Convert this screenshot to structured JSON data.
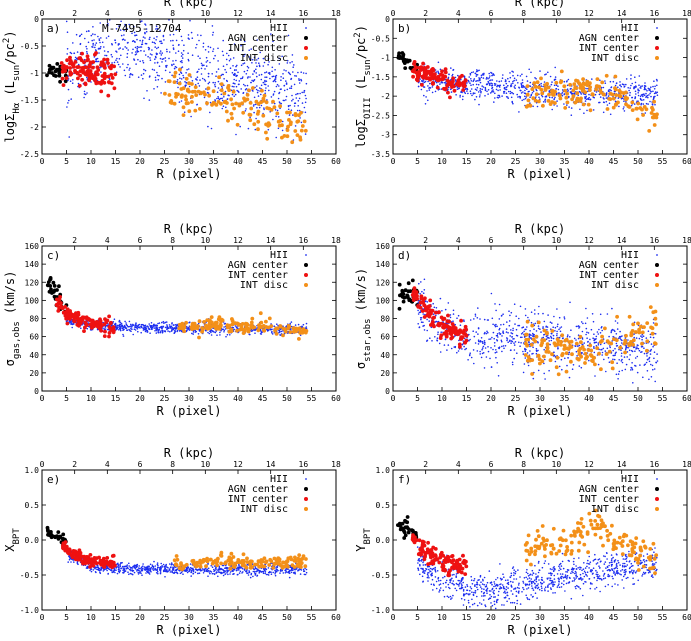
{
  "figure": {
    "title": ""
  },
  "colors": {
    "hii": "#1b2cf0",
    "agn": "#000000",
    "int_center": "#ee1111",
    "int_disc": "#f39019"
  },
  "chart_data": [
    {
      "type": "scatter",
      "panel": "a)",
      "annotation": "M-7495-12704",
      "xlabel": "R  (pixel)",
      "ylabel": "logΣ_Hα (L_sun/pc^2)",
      "x2label": "R  (kpc)",
      "xlim": [
        0,
        60
      ],
      "ylim": [
        -2.5,
        0.0
      ],
      "xticks": [
        "0",
        "5",
        "10",
        "15",
        "20",
        "25",
        "30",
        "35",
        "40",
        "45",
        "50",
        "55",
        "60"
      ],
      "yticks": [
        "0",
        "-0.5",
        "-1",
        "-1.5",
        "-2",
        "-2.5"
      ],
      "x2lim": [
        0,
        18
      ],
      "x2ticks": [
        "0",
        "2",
        "4",
        "6",
        "8",
        "10",
        "12",
        "14",
        "16",
        "18"
      ],
      "legend": [
        "HII",
        "AGN center",
        "INT center",
        "INT disc"
      ],
      "series": [
        {
          "name": "HII",
          "x_range": [
            5,
            54
          ],
          "trend": [
            [
              5,
              -1.0
            ],
            [
              10,
              -0.7
            ],
            [
              15,
              -0.5
            ],
            [
              20,
              -0.6
            ],
            [
              25,
              -0.75
            ],
            [
              30,
              -0.9
            ],
            [
              40,
              -1.15
            ],
            [
              50,
              -1.3
            ],
            [
              53,
              -1.4
            ]
          ],
          "spread": 0.35,
          "n": 900
        },
        {
          "name": "AGN center",
          "x_range": [
            1,
            5
          ],
          "trend": [
            [
              1,
              -0.95
            ],
            [
              3,
              -1.0
            ],
            [
              5,
              -0.95
            ]
          ],
          "spread": 0.1,
          "n": 30
        },
        {
          "name": "INT center",
          "x_range": [
            4,
            15
          ],
          "trend": [
            [
              4,
              -0.95
            ],
            [
              8,
              -0.95
            ],
            [
              12,
              -1.0
            ],
            [
              15,
              -1.05
            ]
          ],
          "spread": 0.15,
          "n": 120
        },
        {
          "name": "INT disc",
          "x_range": [
            25,
            54
          ],
          "trend": [
            [
              25,
              -1.3
            ],
            [
              30,
              -1.4
            ],
            [
              35,
              -1.5
            ],
            [
              40,
              -1.6
            ],
            [
              42,
              -1.7
            ],
            [
              54,
              -2.05
            ]
          ],
          "spread": 0.2,
          "n": 150
        }
      ]
    },
    {
      "type": "scatter",
      "panel": "b)",
      "annotation": "",
      "xlabel": "R  (pixel)",
      "ylabel": "logΣ_OIII (L_sun/pc^2)",
      "x2label": "R  (kpc)",
      "xlim": [
        0,
        60
      ],
      "ylim": [
        -3.5,
        0.0
      ],
      "xticks": [
        "0",
        "5",
        "10",
        "15",
        "20",
        "25",
        "30",
        "35",
        "40",
        "45",
        "50",
        "55",
        "60"
      ],
      "yticks": [
        "0",
        "-0.5",
        "-1",
        "-1.5",
        "-2",
        "-2.5",
        "-3",
        "-3.5"
      ],
      "x2lim": [
        0,
        18
      ],
      "x2ticks": [
        "0",
        "2",
        "4",
        "6",
        "8",
        "10",
        "12",
        "14",
        "16",
        "18"
      ],
      "legend": [
        "HII",
        "AGN center",
        "INT center",
        "INT disc"
      ],
      "series": [
        {
          "name": "HII",
          "x_range": [
            5,
            54
          ],
          "trend": [
            [
              5,
              -1.5
            ],
            [
              15,
              -1.7
            ],
            [
              25,
              -1.8
            ],
            [
              35,
              -1.9
            ],
            [
              45,
              -1.95
            ],
            [
              53,
              -2.0
            ]
          ],
          "spread": 0.2,
          "n": 900
        },
        {
          "name": "AGN center",
          "x_range": [
            1,
            5
          ],
          "trend": [
            [
              1,
              -0.95
            ],
            [
              3,
              -1.1
            ],
            [
              5,
              -1.3
            ]
          ],
          "spread": 0.1,
          "n": 30
        },
        {
          "name": "INT center",
          "x_range": [
            4,
            15
          ],
          "trend": [
            [
              4,
              -1.3
            ],
            [
              8,
              -1.5
            ],
            [
              12,
              -1.65
            ],
            [
              15,
              -1.7
            ]
          ],
          "spread": 0.12,
          "n": 120
        },
        {
          "name": "INT disc",
          "x_range": [
            27,
            54
          ],
          "trend": [
            [
              27,
              -1.9
            ],
            [
              33,
              -1.85
            ],
            [
              38,
              -1.8
            ],
            [
              42,
              -1.9
            ],
            [
              54,
              -2.45
            ]
          ],
          "spread": 0.2,
          "n": 150
        }
      ]
    },
    {
      "type": "scatter",
      "panel": "c)",
      "annotation": "",
      "xlabel": "R  (pixel)",
      "ylabel": "σ_gas,obs (km/s)",
      "x2label": "R  (kpc)",
      "xlim": [
        0,
        60
      ],
      "ylim": [
        0,
        160
      ],
      "xticks": [
        "0",
        "5",
        "10",
        "15",
        "20",
        "25",
        "30",
        "35",
        "40",
        "45",
        "50",
        "55",
        "60"
      ],
      "yticks": [
        "0",
        "20",
        "40",
        "60",
        "80",
        "100",
        "120",
        "140",
        "160"
      ],
      "x2lim": [
        0,
        18
      ],
      "x2ticks": [
        "0",
        "2",
        "4",
        "6",
        "8",
        "10",
        "12",
        "14",
        "16",
        "18"
      ],
      "legend": [
        "HII",
        "AGN center",
        "INT center",
        "INT disc"
      ],
      "series": [
        {
          "name": "HII",
          "x_range": [
            5,
            54
          ],
          "trend": [
            [
              5,
              78
            ],
            [
              10,
              72
            ],
            [
              20,
              70
            ],
            [
              30,
              69
            ],
            [
              40,
              69
            ],
            [
              53,
              68
            ]
          ],
          "spread": 3,
          "n": 900
        },
        {
          "name": "AGN center",
          "x_range": [
            1,
            5
          ],
          "trend": [
            [
              1,
              122
            ],
            [
              3,
              108
            ],
            [
              5,
              90
            ]
          ],
          "spread": 8,
          "n": 30
        },
        {
          "name": "INT center",
          "x_range": [
            3,
            15
          ],
          "trend": [
            [
              3,
              100
            ],
            [
              5,
              85
            ],
            [
              8,
              76
            ],
            [
              12,
              73
            ],
            [
              15,
              72
            ]
          ],
          "spread": 4,
          "n": 120
        },
        {
          "name": "INT disc",
          "x_range": [
            28,
            54
          ],
          "trend": [
            [
              28,
              71
            ],
            [
              35,
              72
            ],
            [
              42,
              72
            ],
            [
              54,
              66
            ]
          ],
          "spread": 4,
          "n": 150
        }
      ]
    },
    {
      "type": "scatter",
      "panel": "d)",
      "annotation": "",
      "xlabel": "R  (pixel)",
      "ylabel": "σ_star,obs (km/s)",
      "x2label": "R  (kpc)",
      "xlim": [
        0,
        60
      ],
      "ylim": [
        0,
        160
      ],
      "xticks": [
        "0",
        "5",
        "10",
        "15",
        "20",
        "25",
        "30",
        "35",
        "40",
        "45",
        "50",
        "55",
        "60"
      ],
      "yticks": [
        "0",
        "20",
        "40",
        "60",
        "80",
        "100",
        "120",
        "140",
        "160"
      ],
      "x2lim": [
        0,
        18
      ],
      "x2ticks": [
        "0",
        "2",
        "4",
        "6",
        "8",
        "10",
        "12",
        "14",
        "16",
        "18"
      ],
      "legend": [
        "HII",
        "AGN center",
        "INT center",
        "INT disc"
      ],
      "series": [
        {
          "name": "HII",
          "x_range": [
            5,
            54
          ],
          "trend": [
            [
              5,
              95
            ],
            [
              10,
              70
            ],
            [
              15,
              62
            ],
            [
              20,
              58
            ],
            [
              30,
              55
            ],
            [
              40,
              52
            ],
            [
              53,
              45
            ]
          ],
          "spread": 15,
          "n": 900
        },
        {
          "name": "AGN center",
          "x_range": [
            1,
            5
          ],
          "trend": [
            [
              1,
              105
            ],
            [
              3,
              108
            ],
            [
              5,
              105
            ]
          ],
          "spread": 6,
          "n": 30
        },
        {
          "name": "INT center",
          "x_range": [
            4,
            15
          ],
          "trend": [
            [
              4,
              108
            ],
            [
              7,
              90
            ],
            [
              10,
              72
            ],
            [
              13,
              62
            ],
            [
              15,
              60
            ]
          ],
          "spread": 6,
          "n": 120
        },
        {
          "name": "INT disc",
          "x_range": [
            27,
            54
          ],
          "trend": [
            [
              27,
              50
            ],
            [
              33,
              48
            ],
            [
              38,
              45
            ],
            [
              42,
              42
            ],
            [
              54,
              75
            ]
          ],
          "spread": 12,
          "n": 150
        }
      ]
    },
    {
      "type": "scatter",
      "panel": "e)",
      "annotation": "",
      "xlabel": "R  (pixel)",
      "ylabel": "X_BPT",
      "x2label": "R  (kpc)",
      "xlim": [
        0,
        60
      ],
      "ylim": [
        -1.0,
        1.0
      ],
      "xticks": [
        "0",
        "5",
        "10",
        "15",
        "20",
        "25",
        "30",
        "35",
        "40",
        "45",
        "50",
        "55",
        "60"
      ],
      "yticks": [
        "1.0",
        "0.5",
        "0.0",
        "-0.5",
        "-1.0"
      ],
      "x2lim": [
        0,
        18
      ],
      "x2ticks": [
        "0",
        "2",
        "4",
        "6",
        "8",
        "10",
        "12",
        "14",
        "16",
        "18"
      ],
      "legend": [
        "HII",
        "AGN center",
        "INT center",
        "INT disc"
      ],
      "series": [
        {
          "name": "HII",
          "x_range": [
            5,
            54
          ],
          "trend": [
            [
              5,
              -0.2
            ],
            [
              10,
              -0.38
            ],
            [
              20,
              -0.42
            ],
            [
              30,
              -0.42
            ],
            [
              40,
              -0.42
            ],
            [
              53,
              -0.42
            ]
          ],
          "spread": 0.04,
          "n": 900
        },
        {
          "name": "AGN center",
          "x_range": [
            1,
            5
          ],
          "trend": [
            [
              1,
              0.12
            ],
            [
              3,
              0.05
            ],
            [
              5,
              -0.05
            ]
          ],
          "spread": 0.04,
          "n": 30
        },
        {
          "name": "INT center",
          "x_range": [
            4,
            15
          ],
          "trend": [
            [
              4,
              -0.05
            ],
            [
              6,
              -0.18
            ],
            [
              9,
              -0.28
            ],
            [
              12,
              -0.32
            ],
            [
              15,
              -0.33
            ]
          ],
          "spread": 0.04,
          "n": 120
        },
        {
          "name": "INT disc",
          "x_range": [
            27,
            54
          ],
          "trend": [
            [
              27,
              -0.35
            ],
            [
              33,
              -0.32
            ],
            [
              38,
              -0.3
            ],
            [
              42,
              -0.32
            ],
            [
              54,
              -0.3
            ]
          ],
          "spread": 0.05,
          "n": 150
        }
      ]
    },
    {
      "type": "scatter",
      "panel": "f)",
      "annotation": "",
      "xlabel": "R  (pixel)",
      "ylabel": "Y_BPT",
      "x2label": "R  (kpc)",
      "xlim": [
        0,
        60
      ],
      "ylim": [
        -1.0,
        1.0
      ],
      "xticks": [
        "0",
        "5",
        "10",
        "15",
        "20",
        "25",
        "30",
        "35",
        "40",
        "45",
        "50",
        "55",
        "60"
      ],
      "yticks": [
        "1.0",
        "0.5",
        "0.0",
        "-0.5",
        "-1.0"
      ],
      "x2lim": [
        0,
        18
      ],
      "x2ticks": [
        "0",
        "2",
        "4",
        "6",
        "8",
        "10",
        "12",
        "14",
        "16",
        "18"
      ],
      "legend": [
        "HII",
        "AGN center",
        "INT center",
        "INT disc"
      ],
      "series": [
        {
          "name": "HII",
          "x_range": [
            5,
            54
          ],
          "trend": [
            [
              5,
              -0.3
            ],
            [
              10,
              -0.6
            ],
            [
              20,
              -0.75
            ],
            [
              30,
              -0.6
            ],
            [
              40,
              -0.45
            ],
            [
              53,
              -0.35
            ]
          ],
          "spread": 0.12,
          "n": 900
        },
        {
          "name": "AGN center",
          "x_range": [
            1,
            5
          ],
          "trend": [
            [
              1,
              0.25
            ],
            [
              3,
              0.18
            ],
            [
              5,
              0.05
            ]
          ],
          "spread": 0.06,
          "n": 30
        },
        {
          "name": "INT center",
          "x_range": [
            4,
            15
          ],
          "trend": [
            [
              4,
              0.0
            ],
            [
              7,
              -0.2
            ],
            [
              10,
              -0.3
            ],
            [
              15,
              -0.35
            ]
          ],
          "spread": 0.08,
          "n": 120
        },
        {
          "name": "INT disc",
          "x_range": [
            27,
            54
          ],
          "trend": [
            [
              27,
              -0.15
            ],
            [
              32,
              -0.05
            ],
            [
              37,
              0.05
            ],
            [
              42,
              0.15
            ],
            [
              54,
              -0.3
            ]
          ],
          "spread": 0.12,
          "n": 150
        }
      ]
    }
  ]
}
